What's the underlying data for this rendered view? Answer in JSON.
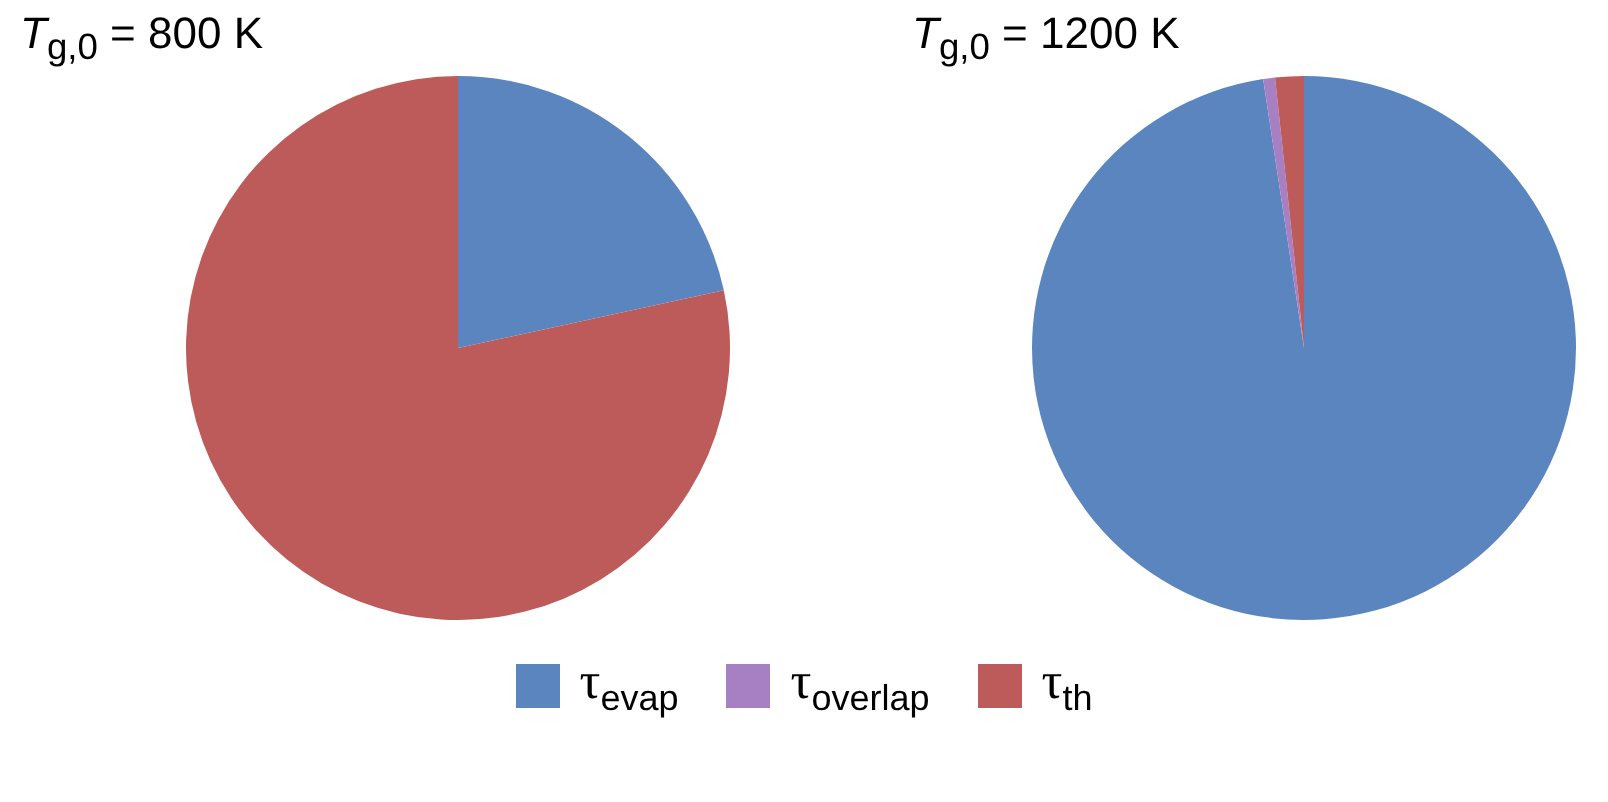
{
  "chart_data": [
    {
      "type": "pie",
      "title": "T$_{g,0}$ = 800 K",
      "categories": [
        "τ$_{evap}$",
        "τ$_{overlap}$",
        "τ$_{th}$"
      ],
      "values": [
        21.6,
        0,
        78.4
      ],
      "colors": [
        "#5b85bf",
        "#a77fc3",
        "#bd5b5a"
      ],
      "legend": "bottom"
    },
    {
      "type": "pie",
      "title": "T$_{g,0}$ = 1200 K",
      "categories": [
        null,
        null,
        null
      ],
      "values": [
        97.6,
        0.7,
        1.7
      ],
      "colors": [
        "#5b85bf",
        "#a77fc3",
        "#bd5b5a"
      ]
    }
  ]
}
